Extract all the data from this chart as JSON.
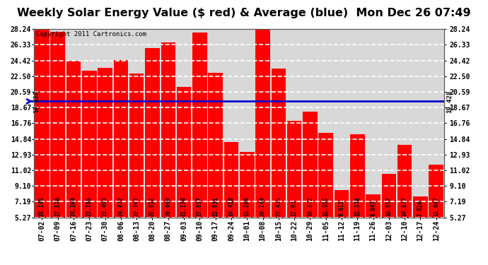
{
  "title": "Weekly Solar Energy Value ($ red) & Average (blue)  Mon Dec 26 07:49",
  "copyright": "Copyright 2011 Cartronics.com",
  "categories": [
    "07-02",
    "07-09",
    "07-16",
    "07-23",
    "07-30",
    "08-06",
    "08-13",
    "08-20",
    "08-27",
    "09-03",
    "09-10",
    "09-17",
    "09-24",
    "10-01",
    "10-08",
    "10-15",
    "10-22",
    "10-29",
    "11-05",
    "11-12",
    "11-19",
    "11-26",
    "12-03",
    "12-10",
    "12-17",
    "12-24"
  ],
  "values": [
    28.145,
    27.876,
    24.364,
    23.185,
    23.493,
    24.472,
    22.797,
    25.912,
    26.649,
    21.178,
    27.837,
    22.931,
    14.418,
    13.268,
    28.244,
    23.435,
    17.03,
    18.172,
    15.555,
    8.611,
    15.378,
    8.043,
    10.557,
    14.077,
    7.826,
    11.687
  ],
  "average": 19.428,
  "average_label": "19.428",
  "bar_color": "#ff0000",
  "average_color": "#0000cc",
  "background_color": "#ffffff",
  "plot_bg_color": "#d8d8d8",
  "grid_color": "#ffffff",
  "ytick_labels": [
    "5.27",
    "7.19",
    "9.10",
    "11.02",
    "12.93",
    "14.84",
    "16.76",
    "18.67",
    "20.59",
    "22.50",
    "24.42",
    "26.33",
    "28.24"
  ],
  "ytick_values": [
    5.27,
    7.19,
    9.1,
    11.02,
    12.93,
    14.84,
    16.76,
    18.67,
    20.59,
    22.5,
    24.42,
    26.33,
    28.24
  ],
  "ylim_min": 5.27,
  "ylim_max": 28.24,
  "title_fontsize": 11.5,
  "copyright_fontsize": 6.5,
  "bar_label_fontsize": 5.5,
  "tick_fontsize": 7,
  "avg_label_fontsize": 6.5
}
